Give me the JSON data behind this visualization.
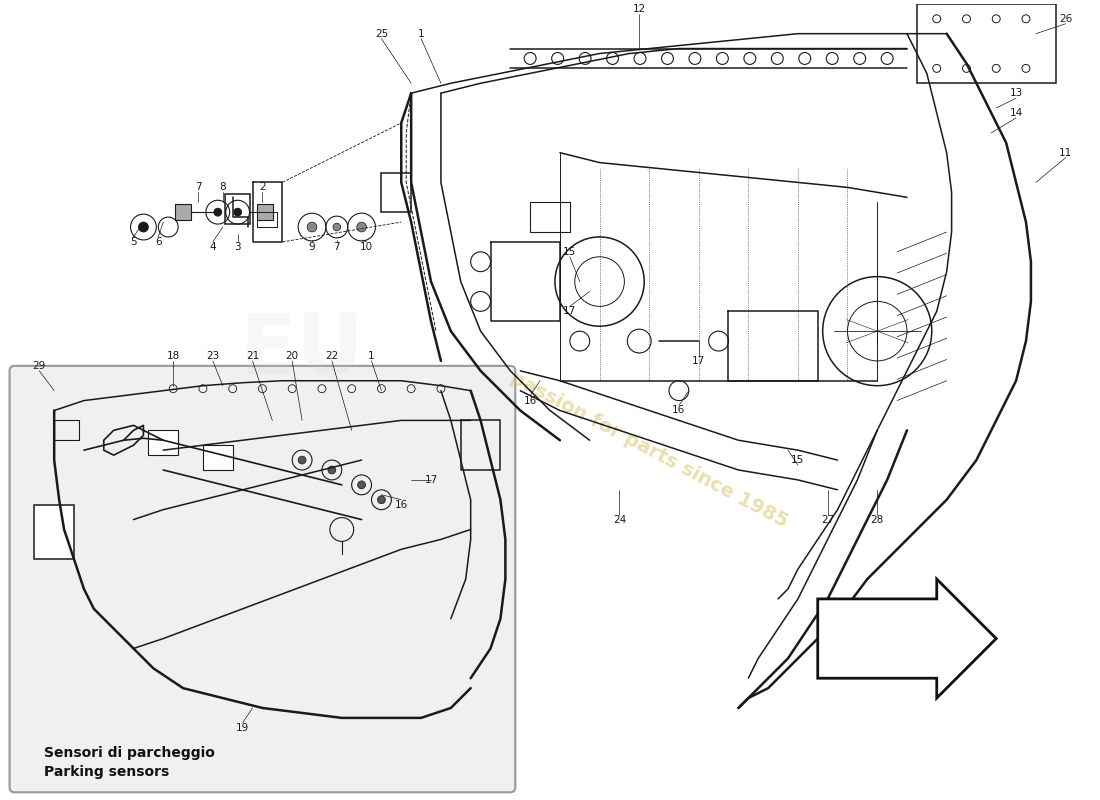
{
  "bg_color": "#ffffff",
  "line_color": "#1a1a1a",
  "lw_thin": 0.7,
  "lw_med": 1.1,
  "lw_thick": 1.8,
  "lw_xthick": 2.5,
  "watermark_text": "passion for parts since 1985",
  "watermark_color": "#d4c060",
  "watermark_alpha": 0.5,
  "subtitle_italian": "Sensori di parcheggio",
  "subtitle_english": "Parking sensors",
  "inset_bg": "#f0f0f0",
  "inset_edge": "#999999"
}
